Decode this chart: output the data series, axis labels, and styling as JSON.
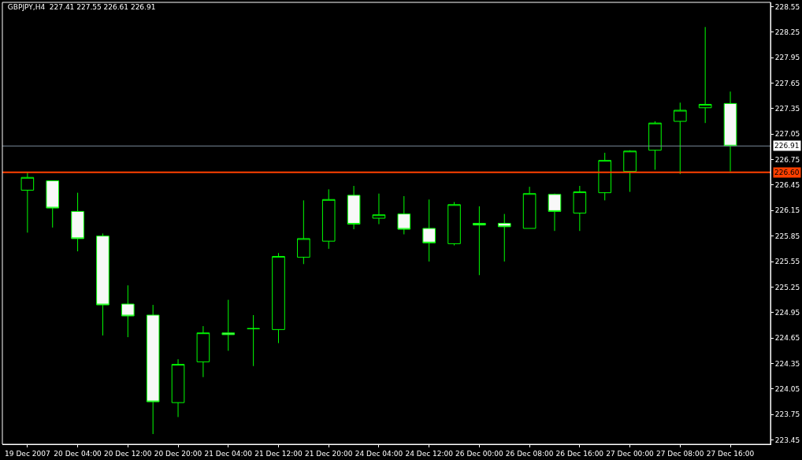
{
  "chart_data": {
    "type": "candlestick",
    "title": "GBPJPY,H4  227.41 227.55 226.61 226.91",
    "categories": [
      "19 Dec 2007",
      null,
      "20 Dec 04:00",
      null,
      "20 Dec 12:00",
      null,
      "20 Dec 20:00",
      null,
      "21 Dec 04:00",
      null,
      "21 Dec 12:00",
      null,
      "21 Dec 20:00",
      null,
      "24 Dec 04:00",
      null,
      "24 Dec 12:00",
      null,
      "26 Dec 00:00",
      null,
      "26 Dec 08:00",
      null,
      "26 Dec 16:00",
      null,
      "27 Dec 00:00",
      null,
      "27 Dec 08:00",
      null,
      "27 Dec 16:00"
    ],
    "ohlc": [
      [
        226.39,
        226.6,
        225.89,
        226.54
      ],
      [
        226.5,
        226.5,
        225.95,
        226.18
      ],
      [
        226.14,
        226.36,
        225.67,
        225.82
      ],
      [
        225.85,
        225.88,
        224.68,
        225.04
      ],
      [
        225.05,
        225.27,
        224.66,
        224.91
      ],
      [
        224.92,
        225.04,
        223.52,
        223.9
      ],
      [
        223.89,
        224.4,
        223.72,
        224.34
      ],
      [
        224.37,
        224.79,
        224.19,
        224.71
      ],
      [
        224.71,
        225.1,
        224.5,
        224.69
      ],
      [
        224.76,
        224.92,
        224.32,
        224.76
      ],
      [
        224.75,
        225.65,
        224.59,
        225.61
      ],
      [
        225.6,
        226.27,
        225.52,
        225.82
      ],
      [
        225.79,
        226.4,
        225.7,
        226.28
      ],
      [
        226.33,
        226.44,
        225.93,
        225.99
      ],
      [
        226.06,
        226.35,
        225.99,
        226.1
      ],
      [
        226.11,
        226.32,
        225.87,
        225.93
      ],
      [
        225.94,
        226.28,
        225.55,
        225.77
      ],
      [
        225.76,
        226.25,
        225.74,
        226.22
      ],
      [
        226.0,
        226.2,
        225.39,
        225.98
      ],
      [
        226.0,
        226.11,
        225.55,
        225.96
      ],
      [
        225.94,
        226.43,
        225.94,
        226.35
      ],
      [
        226.34,
        226.35,
        225.91,
        226.14
      ],
      [
        226.12,
        226.44,
        225.91,
        226.37
      ],
      [
        226.36,
        226.83,
        226.27,
        226.74
      ],
      [
        226.61,
        226.86,
        226.37,
        226.85
      ],
      [
        226.86,
        227.2,
        226.63,
        227.18
      ],
      [
        227.2,
        227.42,
        226.58,
        227.33
      ],
      [
        227.36,
        228.31,
        227.18,
        227.4
      ],
      [
        227.41,
        227.55,
        226.61,
        226.91
      ]
    ],
    "color": "#00ff00",
    "ylim": [
      223.4,
      228.6
    ],
    "yticks": [
      228.55,
      228.25,
      227.95,
      227.65,
      227.35,
      227.05,
      226.75,
      226.45,
      226.15,
      225.85,
      225.55,
      225.25,
      224.95,
      224.65,
      224.35,
      224.05,
      223.75,
      223.45
    ],
    "ref_lines": [
      {
        "axis": "y",
        "value": 226.91,
        "label": "226.91",
        "color": "#778899"
      },
      {
        "axis": "y",
        "value": 226.6,
        "label": "226.60",
        "color": "#ff4000"
      }
    ],
    "grid": false,
    "legend": false
  }
}
